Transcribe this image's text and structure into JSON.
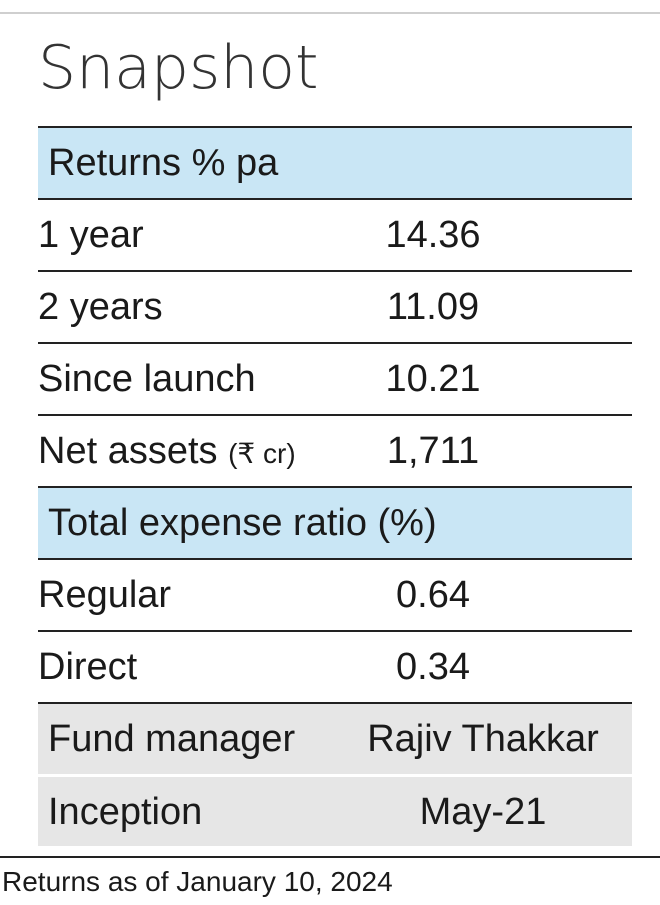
{
  "title": "Snapshot",
  "returns": {
    "header": "Returns % pa",
    "rows": [
      {
        "label": "1 year",
        "value": "14.36"
      },
      {
        "label": "2 years",
        "value": "11.09"
      },
      {
        "label": "Since launch",
        "value": "10.21"
      }
    ]
  },
  "net_assets": {
    "label": "Net assets",
    "unit": "(₹ cr)",
    "value": "1,711"
  },
  "expense": {
    "header": "Total expense ratio (%)",
    "rows": [
      {
        "label": "Regular",
        "value": "0.64"
      },
      {
        "label": "Direct",
        "value": "0.34"
      }
    ]
  },
  "info": [
    {
      "label": "Fund manager",
      "value": "Rajiv Thakkar"
    },
    {
      "label": "Inception",
      "value": "May-21"
    }
  ],
  "footnote": "Returns as of January 10, 2024",
  "colors": {
    "header_bg": "#c9e6f5",
    "info_bg": "#e6e6e6"
  }
}
